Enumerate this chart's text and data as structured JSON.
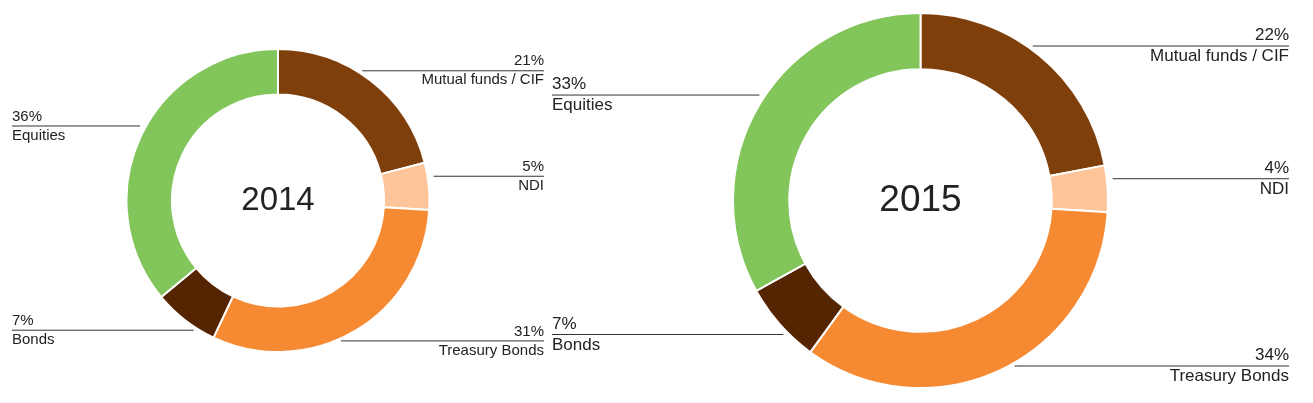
{
  "chart_data": [
    {
      "type": "donut",
      "title": "2014",
      "categories": [
        "Mutual funds / CIF",
        "NDI",
        "Treasury Bonds",
        "Bonds",
        "Equities"
      ],
      "values": [
        21,
        5,
        31,
        7,
        36
      ],
      "colors": [
        "#7f3f0a",
        "#fdc599",
        "#f58a33",
        "#552400",
        "#82c55a"
      ],
      "value_labels": [
        "21%",
        "5%",
        "31%",
        "7%",
        "36%"
      ],
      "legend": false
    },
    {
      "type": "donut",
      "title": "2015",
      "categories": [
        "Mutual funds / CIF",
        "NDI",
        "Treasury Bonds",
        "Bonds",
        "Equities"
      ],
      "values": [
        22,
        4,
        34,
        7,
        33
      ],
      "colors": [
        "#7f3f0a",
        "#fdc599",
        "#f58a33",
        "#552400",
        "#82c55a"
      ],
      "value_labels": [
        "22%",
        "4%",
        "34%",
        "7%",
        "33%"
      ],
      "legend": false
    }
  ]
}
